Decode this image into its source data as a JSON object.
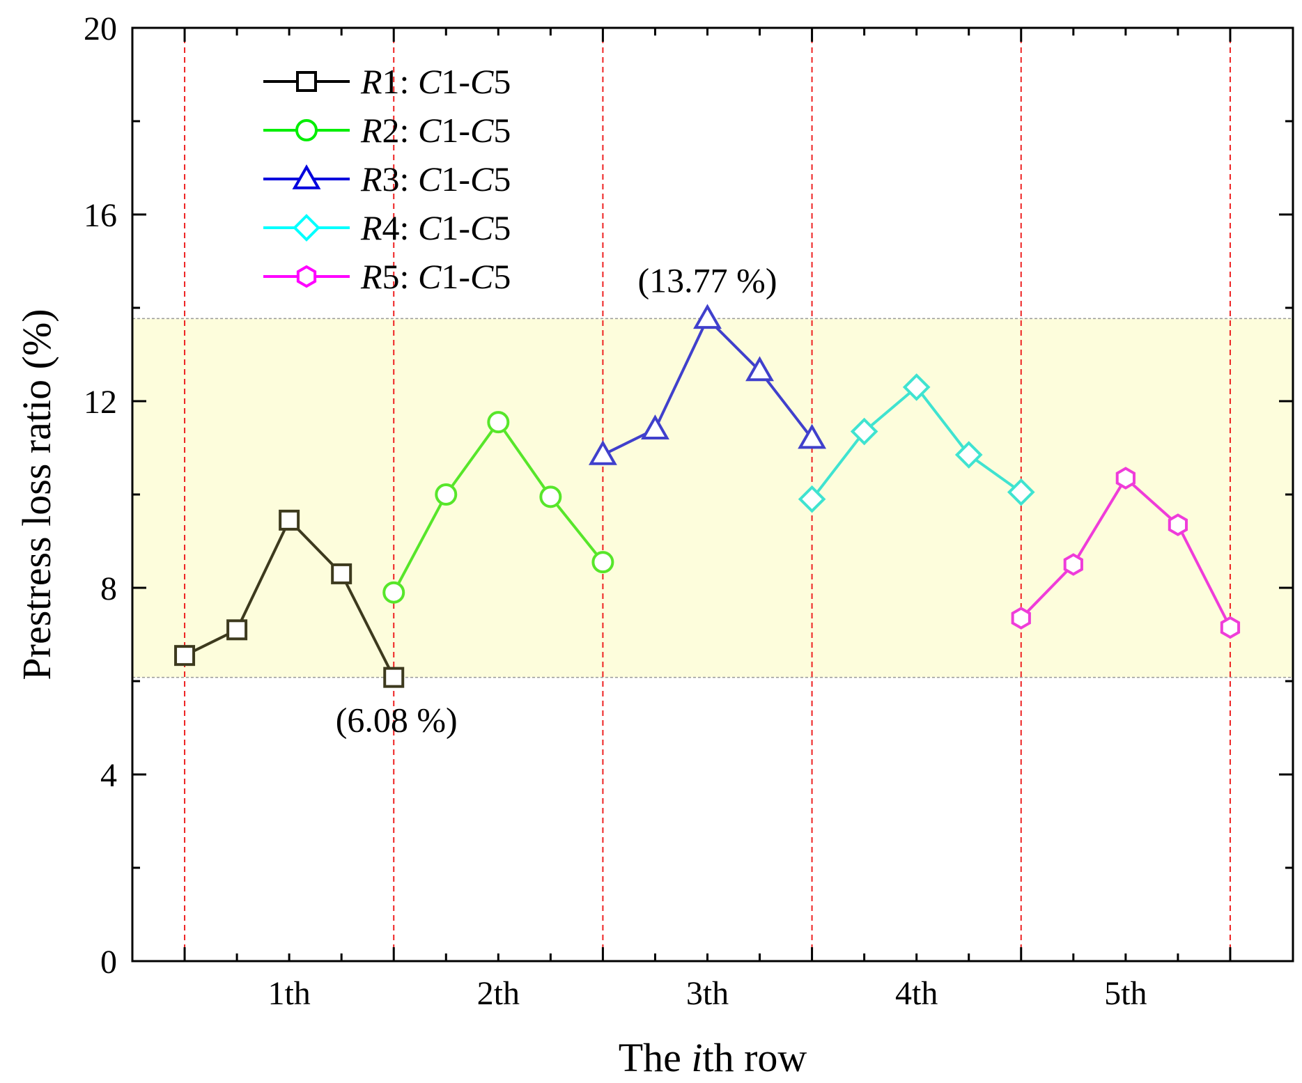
{
  "chart_data": {
    "type": "line",
    "title": "",
    "xlabel_parts": [
      "The ",
      "i",
      "th row"
    ],
    "ylabel": "Prestress loss ratio (%)",
    "ylim": [
      0,
      20
    ],
    "yticks": [
      "0",
      "4",
      "8",
      "12",
      "16",
      "20"
    ],
    "categories": [
      "1th",
      "2th",
      "3th",
      "4th",
      "5th"
    ],
    "x": [
      1,
      2,
      3,
      4,
      5,
      6,
      7,
      8,
      9,
      10,
      11,
      12,
      13,
      14,
      15,
      16,
      17,
      18,
      19,
      20,
      21
    ],
    "row_boundaries_x": [
      1,
      5,
      9,
      13,
      17,
      21
    ],
    "highlight_band": [
      6.08,
      13.77
    ],
    "annotations": [
      {
        "text": "(13.77 %)",
        "x": 11,
        "y": 13.77,
        "position": "above"
      },
      {
        "text": "(6.08 %)",
        "x": 5,
        "y": 6.08,
        "position": "below"
      }
    ],
    "series": [
      {
        "name": "R1: C1-C5",
        "prefix": "R",
        "n1": "1",
        "mid": ": ",
        "c1": "C",
        "n2": "1",
        "dash": "-",
        "c2": "C",
        "n3": "5",
        "color": "#3d3a1e",
        "legend_color": "#000000",
        "marker": "square",
        "x": [
          1,
          2,
          3,
          4,
          5
        ],
        "values": [
          6.55,
          7.1,
          9.45,
          8.3,
          6.08
        ]
      },
      {
        "name": "R2: C1-C5",
        "prefix": "R",
        "n1": "2",
        "mid": ": ",
        "c1": "C",
        "n2": "1",
        "dash": "-",
        "c2": "C",
        "n3": "5",
        "color": "#57e62a",
        "legend_color": "#00ee00",
        "marker": "circle",
        "x": [
          5,
          6,
          7,
          8,
          9
        ],
        "values": [
          7.9,
          10.0,
          11.55,
          9.95,
          8.55
        ]
      },
      {
        "name": "R3: C1-C5",
        "prefix": "R",
        "n1": "3",
        "mid": ": ",
        "c1": "C",
        "n2": "1",
        "dash": "-",
        "c2": "C",
        "n3": "5",
        "color": "#4040cc",
        "legend_color": "#0000dd",
        "marker": "triangle",
        "x": [
          9,
          10,
          11,
          12,
          13
        ],
        "values": [
          10.85,
          11.4,
          13.77,
          12.65,
          11.2
        ]
      },
      {
        "name": "R4: C1-C5",
        "prefix": "R",
        "n1": "4",
        "mid": ": ",
        "c1": "C",
        "n2": "1",
        "dash": "-",
        "c2": "C",
        "n3": "5",
        "color": "#3fe3d0",
        "legend_color": "#00ffff",
        "marker": "diamond",
        "x": [
          13,
          14,
          15,
          16,
          17
        ],
        "values": [
          9.9,
          11.35,
          12.3,
          10.85,
          10.05
        ]
      },
      {
        "name": "R5: C1-C5",
        "prefix": "R",
        "n1": "5",
        "mid": ": ",
        "c1": "C",
        "n2": "1",
        "dash": "-",
        "c2": "C",
        "n3": "5",
        "color": "#ef3cd9",
        "legend_color": "#ff00ff",
        "marker": "hexagon",
        "x": [
          17,
          18,
          19,
          20,
          21
        ],
        "values": [
          7.35,
          8.5,
          10.35,
          9.35,
          7.15
        ]
      }
    ]
  }
}
